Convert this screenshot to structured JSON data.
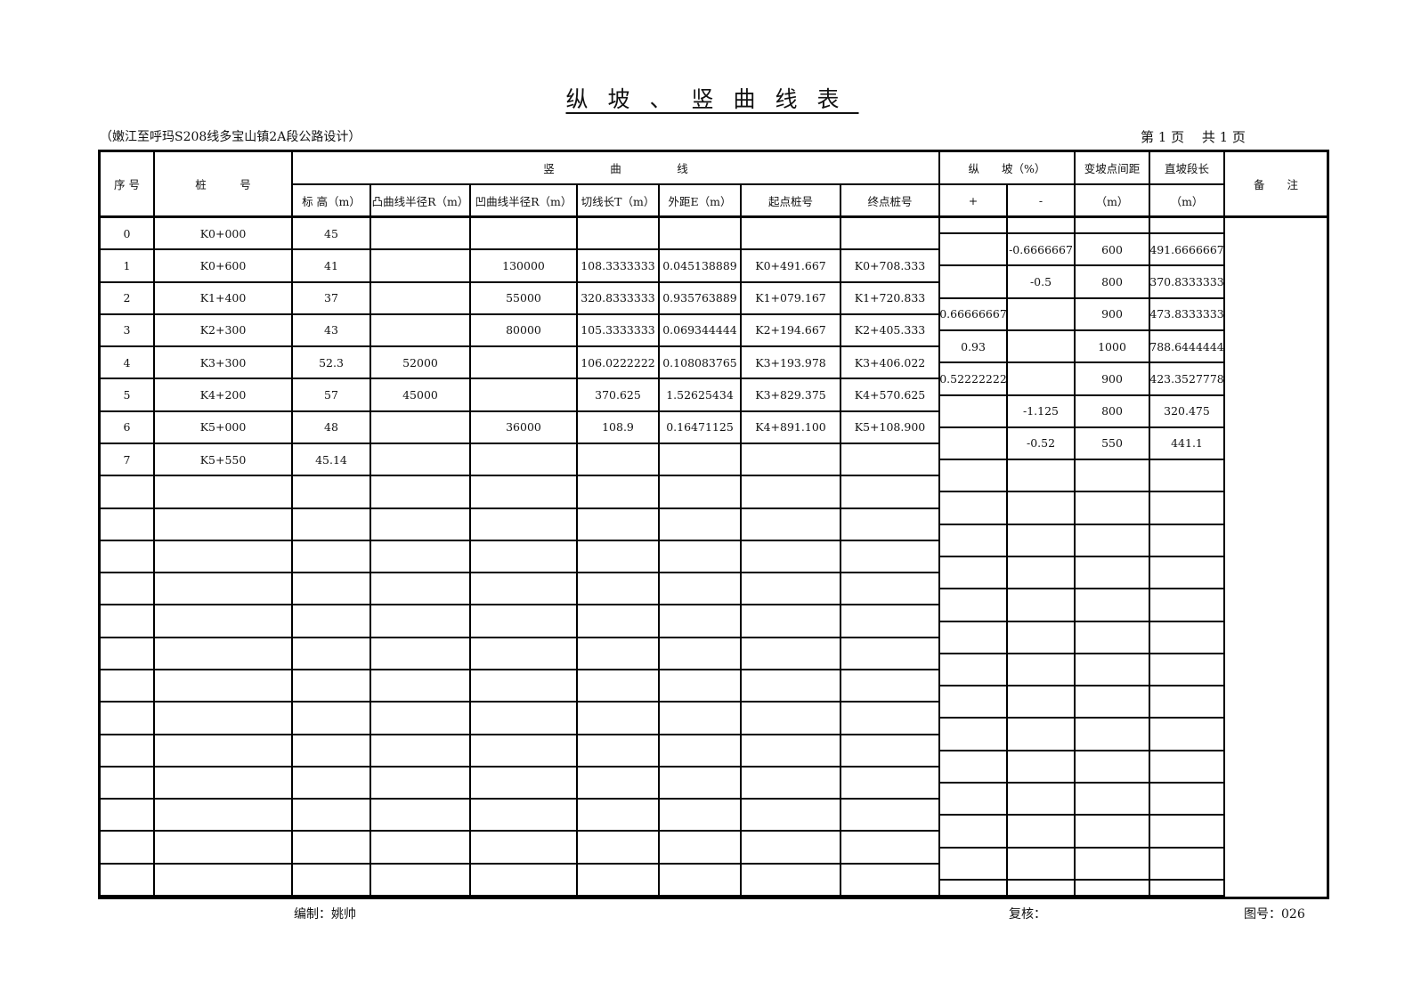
{
  "title": "纵坡、竖曲线表",
  "project": "（嫩江至呼玛S208线多宝山镇2A段公路设计）",
  "page_info": "第 1 页　 共 1 页",
  "header": {
    "seq": "序 号",
    "station": "桩　　　号",
    "vcurve": "竖　　　　　曲　　　　　线",
    "elev": "标 高（m）",
    "convex_r": "凸曲线半径R（m）",
    "concave_r": "凹曲线半径R（m）",
    "tangent": "切线长T（m）",
    "external": "外距E（m）",
    "start": "起点桩号",
    "end": "终点桩号",
    "grade": "纵　　坡（%）",
    "plus": "+",
    "minus": "-",
    "pvi_dist": "变坡点间距",
    "pvi_unit": "（m）",
    "straight_len": "直坡段长",
    "straight_unit": "（m）",
    "notes": "备　　注"
  },
  "rows": [
    [
      "0",
      "K0+000",
      "45",
      "",
      "",
      "",
      "",
      "",
      ""
    ],
    [
      "1",
      "K0+600",
      "41",
      "",
      "130000",
      "108.3333333",
      "0.045138889",
      "K0+491.667",
      "K0+708.333"
    ],
    [
      "2",
      "K1+400",
      "37",
      "",
      "55000",
      "320.8333333",
      "0.935763889",
      "K1+079.167",
      "K1+720.833"
    ],
    [
      "3",
      "K2+300",
      "43",
      "",
      "80000",
      "105.3333333",
      "0.069344444",
      "K2+194.667",
      "K2+405.333"
    ],
    [
      "4",
      "K3+300",
      "52.3",
      "52000",
      "",
      "106.0222222",
      "0.108083765",
      "K3+193.978",
      "K3+406.022"
    ],
    [
      "5",
      "K4+200",
      "57",
      "45000",
      "",
      "370.625",
      "1.52625434",
      "K3+829.375",
      "K4+570.625"
    ],
    [
      "6",
      "K5+000",
      "48",
      "",
      "36000",
      "108.9",
      "0.16471125",
      "K4+891.100",
      "K5+108.900"
    ],
    [
      "7",
      "K5+550",
      "45.14",
      "",
      "",
      "",
      "",
      "",
      ""
    ]
  ],
  "grades": [
    [
      "",
      "-0.6666667",
      "600",
      "491.6666667"
    ],
    [
      "",
      "-0.5",
      "800",
      "370.8333333"
    ],
    [
      "0.66666667",
      "",
      "900",
      "473.8333333"
    ],
    [
      "0.93",
      "",
      "1000",
      "788.6444444"
    ],
    [
      "0.52222222",
      "",
      "900",
      "423.3527778"
    ],
    [
      "",
      "-1.125",
      "800",
      "320.475"
    ],
    [
      "",
      "-0.52",
      "550",
      "441.1"
    ]
  ],
  "footer": {
    "compiled": "编制：姚帅",
    "reviewed": "复核：",
    "drawing_no": "图号：026"
  }
}
